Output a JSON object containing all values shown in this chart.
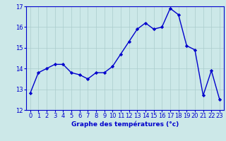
{
  "x": [
    0,
    1,
    2,
    3,
    4,
    5,
    6,
    7,
    8,
    9,
    10,
    11,
    12,
    13,
    14,
    15,
    16,
    17,
    18,
    19,
    20,
    21,
    22,
    23
  ],
  "y": [
    12.8,
    13.8,
    14.0,
    14.2,
    14.2,
    13.8,
    13.7,
    13.5,
    13.8,
    13.8,
    14.1,
    14.7,
    15.3,
    15.9,
    16.2,
    15.9,
    16.0,
    16.9,
    16.6,
    15.1,
    14.9,
    12.7,
    13.9,
    12.5
  ],
  "line_color": "#0000cc",
  "marker": "D",
  "marker_size": 2.2,
  "bg_color": "#cce8e8",
  "grid_color": "#aacccc",
  "xlabel": "Graphe des températures (°c)",
  "xlabel_color": "#0000cc",
  "tick_color": "#0000cc",
  "label_fontsize": 6.0,
  "xlabel_fontsize": 6.5,
  "ylim": [
    12,
    17
  ],
  "yticks": [
    12,
    13,
    14,
    15,
    16,
    17
  ],
  "xticks": [
    0,
    1,
    2,
    3,
    4,
    5,
    6,
    7,
    8,
    9,
    10,
    11,
    12,
    13,
    14,
    15,
    16,
    17,
    18,
    19,
    20,
    21,
    22,
    23
  ],
  "spine_color": "#0000cc",
  "bottom_bar_color": "#0000aa",
  "line_width": 1.0
}
